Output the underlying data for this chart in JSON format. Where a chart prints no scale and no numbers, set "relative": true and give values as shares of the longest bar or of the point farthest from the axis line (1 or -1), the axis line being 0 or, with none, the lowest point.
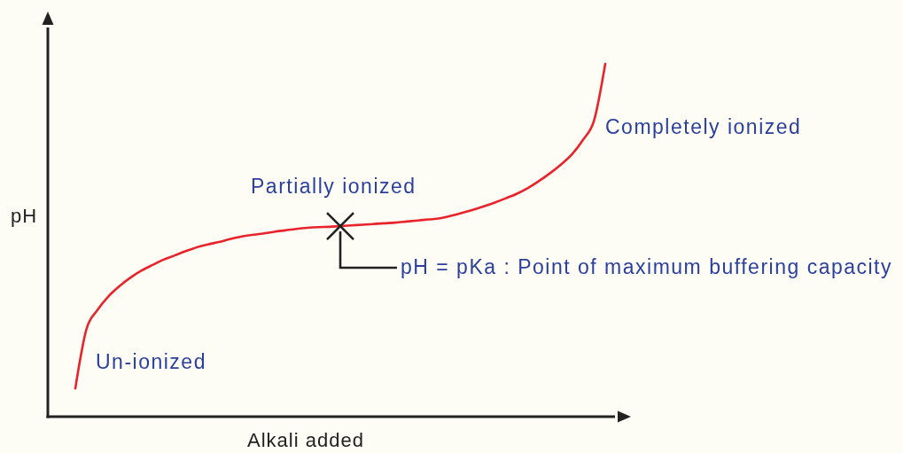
{
  "chart_data": {
    "type": "line",
    "relative": true,
    "xlabel": "Alkali added",
    "ylabel": "pH",
    "categories": [
      null,
      null,
      null,
      null,
      null,
      null,
      null,
      null,
      null,
      null,
      null,
      null,
      null,
      null,
      null,
      null,
      null,
      null,
      null,
      null,
      null,
      null,
      null,
      null,
      null,
      null,
      null,
      null,
      null,
      null,
      null,
      null,
      null,
      null,
      null,
      null,
      null,
      null,
      null,
      null,
      null,
      null,
      null,
      null,
      null,
      null,
      null,
      null,
      null
    ],
    "series": [
      {
        "color": "#e8232b",
        "values": [
          0.08,
          0.247,
          0.302,
          0.341,
          0.37,
          0.394,
          0.414,
          0.43,
          0.445,
          0.457,
          0.469,
          0.48,
          0.488,
          0.495,
          0.503,
          0.51,
          0.515,
          0.519,
          0.524,
          0.528,
          0.532,
          0.535,
          0.537,
          0.538,
          0.54,
          0.542,
          0.544,
          0.546,
          0.548,
          0.55,
          0.553,
          0.556,
          0.559,
          0.562,
          0.569,
          0.577,
          0.586,
          0.596,
          0.607,
          0.619,
          0.632,
          0.648,
          0.668,
          0.69,
          0.715,
          0.744,
          0.785,
          0.841,
          1
        ]
      }
    ],
    "annotations": [
      "Un-ionized",
      "Partially ionized",
      "Completely ionized",
      "pH = pKa : Point of maximum buffering capacity"
    ]
  }
}
